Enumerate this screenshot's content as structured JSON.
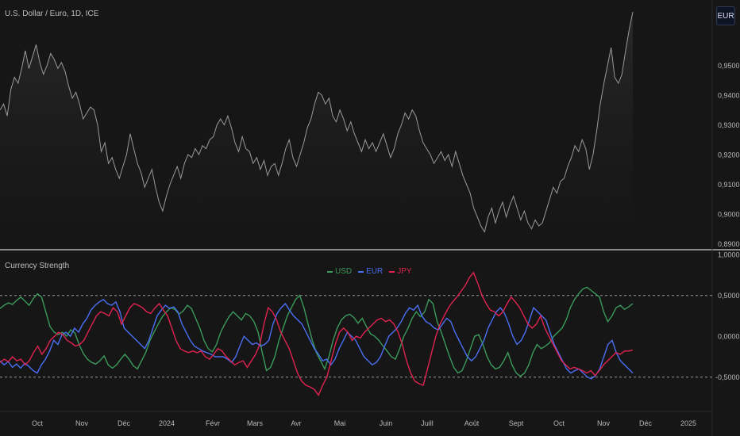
{
  "header": {
    "title": "U.S. Dollar / Euro, 1D, ICE",
    "currency_button": "EUR"
  },
  "colors": {
    "background": "#161616",
    "price_line": "#9a9a9a",
    "usd": "#3b9a5c",
    "eur": "#4a6ff2",
    "jpy": "#e02350",
    "grid_dashed": "#9a9a9a"
  },
  "chart_data": [
    {
      "type": "area",
      "xlabel": "",
      "ylabel": "",
      "x_ticks": [
        "Oct",
        "Nov",
        "Déc",
        "2024",
        "Févr",
        "Mars",
        "Avr",
        "Mai",
        "Juin",
        "Juill",
        "Août",
        "Sept",
        "Oct",
        "Nov",
        "Déc",
        "2025"
      ],
      "y_ticks": [
        "0,8900",
        "0,9000",
        "0,9100",
        "0,9200",
        "0,9300",
        "0,9400",
        "0,9500"
      ],
      "ylim": [
        0.888,
        0.972
      ],
      "series": [
        {
          "values": [
            0.935,
            0.937,
            0.933,
            0.942,
            0.946,
            0.944,
            0.949,
            0.955,
            0.949,
            0.953,
            0.957,
            0.951,
            0.947,
            0.95,
            0.954,
            0.952,
            0.949,
            0.951,
            0.948,
            0.943,
            0.939,
            0.941,
            0.937,
            0.932,
            0.934,
            0.936,
            0.935,
            0.93,
            0.921,
            0.924,
            0.917,
            0.919,
            0.915,
            0.912,
            0.916,
            0.92,
            0.927,
            0.922,
            0.917,
            0.914,
            0.909,
            0.912,
            0.915,
            0.909,
            0.904,
            0.901,
            0.906,
            0.91,
            0.913,
            0.916,
            0.912,
            0.917,
            0.92,
            0.919,
            0.922,
            0.92,
            0.923,
            0.922,
            0.925,
            0.926,
            0.93,
            0.932,
            0.93,
            0.933,
            0.929,
            0.924,
            0.921,
            0.926,
            0.922,
            0.921,
            0.917,
            0.919,
            0.915,
            0.918,
            0.913,
            0.916,
            0.917,
            0.913,
            0.917,
            0.922,
            0.925,
            0.919,
            0.916,
            0.92,
            0.924,
            0.929,
            0.932,
            0.937,
            0.941,
            0.94,
            0.937,
            0.939,
            0.933,
            0.931,
            0.935,
            0.932,
            0.928,
            0.931,
            0.927,
            0.924,
            0.921,
            0.925,
            0.922,
            0.924,
            0.921,
            0.924,
            0.927,
            0.923,
            0.919,
            0.922,
            0.927,
            0.93,
            0.934,
            0.932,
            0.935,
            0.933,
            0.928,
            0.924,
            0.922,
            0.92,
            0.917,
            0.919,
            0.921,
            0.918,
            0.92,
            0.916,
            0.921,
            0.917,
            0.913,
            0.91,
            0.907,
            0.902,
            0.899,
            0.896,
            0.894,
            0.899,
            0.902,
            0.897,
            0.901,
            0.904,
            0.899,
            0.903,
            0.906,
            0.902,
            0.898,
            0.901,
            0.897,
            0.895,
            0.898,
            0.896,
            0.897,
            0.901,
            0.905,
            0.909,
            0.907,
            0.911,
            0.912,
            0.916,
            0.919,
            0.923,
            0.921,
            0.925,
            0.922,
            0.915,
            0.92,
            0.928,
            0.937,
            0.944,
            0.95,
            0.956,
            0.946,
            0.944,
            0.947,
            0.955,
            0.962,
            0.968
          ]
        }
      ]
    },
    {
      "type": "line",
      "title": "Currency Strength",
      "xlabel": "",
      "ylabel": "",
      "y_ticks": [
        "-0,5000",
        "0,0000",
        "0,5000",
        "1,0000"
      ],
      "ylim": [
        -0.92,
        1.06
      ],
      "dashed_levels": [
        0.5,
        -0.5
      ],
      "legend": "top-center",
      "series": [
        {
          "name": "USD",
          "values": [
            0.34,
            0.38,
            0.41,
            0.39,
            0.44,
            0.48,
            0.43,
            0.38,
            0.46,
            0.52,
            0.48,
            0.3,
            0.12,
            0.05,
            0.02,
            0.05,
            0.0,
            0.08,
            0.04,
            -0.1,
            -0.21,
            -0.28,
            -0.32,
            -0.34,
            -0.3,
            -0.24,
            -0.35,
            -0.39,
            -0.35,
            -0.28,
            -0.22,
            -0.28,
            -0.36,
            -0.4,
            -0.3,
            -0.2,
            -0.05,
            0.05,
            0.15,
            0.24,
            0.3,
            0.35,
            0.33,
            0.27,
            0.31,
            0.38,
            0.34,
            0.22,
            0.1,
            -0.05,
            -0.15,
            -0.19,
            -0.1,
            0.05,
            0.15,
            0.24,
            0.3,
            0.25,
            0.2,
            0.28,
            0.25,
            0.18,
            0.05,
            -0.2,
            -0.42,
            -0.38,
            -0.25,
            -0.05,
            0.1,
            0.25,
            0.35,
            0.45,
            0.5,
            0.35,
            0.15,
            -0.05,
            -0.2,
            -0.3,
            -0.4,
            -0.25,
            -0.05,
            0.1,
            0.2,
            0.25,
            0.27,
            0.23,
            0.16,
            0.22,
            0.12,
            0.03,
            0.0,
            -0.05,
            -0.12,
            -0.18,
            -0.25,
            -0.28,
            -0.15,
            0.0,
            0.1,
            0.22,
            0.3,
            0.24,
            0.3,
            0.45,
            0.4,
            0.18,
            0.05,
            -0.1,
            -0.25,
            -0.38,
            -0.45,
            -0.42,
            -0.3,
            -0.15,
            0.0,
            0.02,
            -0.1,
            -0.25,
            -0.35,
            -0.4,
            -0.38,
            -0.3,
            -0.2,
            -0.35,
            -0.45,
            -0.49,
            -0.45,
            -0.35,
            -0.2,
            -0.1,
            -0.15,
            -0.12,
            -0.08,
            0.0,
            0.05,
            0.1,
            0.2,
            0.35,
            0.45,
            0.52,
            0.58,
            0.6,
            0.56,
            0.52,
            0.48,
            0.3,
            0.18,
            0.25,
            0.35,
            0.38,
            0.33,
            0.36,
            0.4
          ]
        },
        {
          "name": "EUR",
          "values": [
            -0.3,
            -0.35,
            -0.31,
            -0.38,
            -0.34,
            -0.39,
            -0.33,
            -0.37,
            -0.42,
            -0.45,
            -0.35,
            -0.28,
            -0.18,
            -0.05,
            -0.1,
            0.02,
            0.05,
            0.0,
            0.1,
            0.05,
            0.15,
            0.22,
            0.32,
            0.38,
            0.42,
            0.45,
            0.4,
            0.38,
            0.42,
            0.3,
            0.1,
            0.05,
            0.0,
            -0.05,
            -0.1,
            -0.15,
            -0.05,
            0.1,
            0.25,
            0.32,
            0.38,
            0.34,
            0.36,
            0.3,
            0.15,
            0.05,
            -0.05,
            -0.12,
            -0.15,
            -0.18,
            -0.2,
            -0.22,
            -0.25,
            -0.25,
            -0.25,
            -0.28,
            -0.32,
            -0.25,
            -0.12,
            0.0,
            -0.05,
            -0.1,
            -0.08,
            -0.12,
            -0.1,
            -0.05,
            0.15,
            0.28,
            0.35,
            0.4,
            0.32,
            0.25,
            0.2,
            0.15,
            0.05,
            -0.05,
            -0.15,
            -0.22,
            -0.3,
            -0.28,
            -0.35,
            -0.28,
            -0.15,
            -0.05,
            0.05,
            0.0,
            -0.05,
            -0.15,
            -0.25,
            -0.3,
            -0.35,
            -0.32,
            -0.25,
            -0.12,
            0.0,
            0.05,
            0.1,
            0.18,
            0.28,
            0.35,
            0.32,
            0.38,
            0.25,
            0.18,
            0.15,
            0.1,
            0.08,
            0.15,
            0.22,
            0.18,
            0.05,
            -0.05,
            -0.15,
            -0.25,
            -0.3,
            -0.25,
            -0.15,
            -0.05,
            0.1,
            0.2,
            0.3,
            0.35,
            0.28,
            0.15,
            0.0,
            -0.1,
            -0.05,
            0.05,
            0.2,
            0.35,
            0.3,
            0.25,
            0.2,
            0.05,
            -0.1,
            -0.2,
            -0.3,
            -0.4,
            -0.45,
            -0.42,
            -0.4,
            -0.45,
            -0.5,
            -0.52,
            -0.48,
            -0.4,
            -0.25,
            -0.1,
            -0.05,
            -0.2,
            -0.3,
            -0.35,
            -0.4,
            -0.45
          ]
        },
        {
          "name": "JPY",
          "values": [
            -0.32,
            -0.28,
            -0.31,
            -0.25,
            -0.3,
            -0.28,
            -0.35,
            -0.3,
            -0.2,
            -0.12,
            -0.22,
            -0.15,
            -0.05,
            0.0,
            0.05,
            0.02,
            -0.05,
            -0.08,
            -0.12,
            -0.1,
            -0.05,
            0.05,
            0.15,
            0.25,
            0.3,
            0.28,
            0.25,
            0.35,
            0.3,
            0.15,
            0.25,
            0.35,
            0.4,
            0.38,
            0.35,
            0.3,
            0.28,
            0.35,
            0.4,
            0.32,
            0.25,
            0.1,
            -0.05,
            -0.15,
            -0.18,
            -0.2,
            -0.18,
            -0.2,
            -0.18,
            -0.25,
            -0.28,
            -0.22,
            -0.15,
            -0.18,
            -0.25,
            -0.3,
            -0.35,
            -0.32,
            -0.3,
            -0.38,
            -0.3,
            -0.22,
            -0.1,
            0.15,
            0.35,
            0.3,
            0.2,
            0.05,
            -0.05,
            -0.15,
            -0.3,
            -0.45,
            -0.55,
            -0.6,
            -0.62,
            -0.65,
            -0.72,
            -0.6,
            -0.5,
            -0.3,
            -0.1,
            0.05,
            0.1,
            0.05,
            -0.05,
            0.0,
            -0.02,
            0.05,
            0.1,
            0.15,
            0.2,
            0.22,
            0.18,
            0.2,
            0.15,
            0.05,
            -0.1,
            -0.3,
            -0.45,
            -0.55,
            -0.58,
            -0.6,
            -0.4,
            -0.2,
            0.0,
            0.15,
            0.25,
            0.35,
            0.42,
            0.48,
            0.55,
            0.62,
            0.72,
            0.78,
            0.65,
            0.5,
            0.4,
            0.32,
            0.3,
            0.25,
            0.3,
            0.4,
            0.48,
            0.42,
            0.35,
            0.25,
            0.15,
            0.1,
            0.15,
            0.25,
            0.1,
            0.0,
            -0.1,
            -0.2,
            -0.3,
            -0.35,
            -0.4,
            -0.38,
            -0.4,
            -0.42,
            -0.45,
            -0.42,
            -0.48,
            -0.42,
            -0.35,
            -0.3,
            -0.25,
            -0.2,
            -0.22,
            -0.18,
            -0.18,
            -0.17
          ]
        }
      ]
    }
  ]
}
